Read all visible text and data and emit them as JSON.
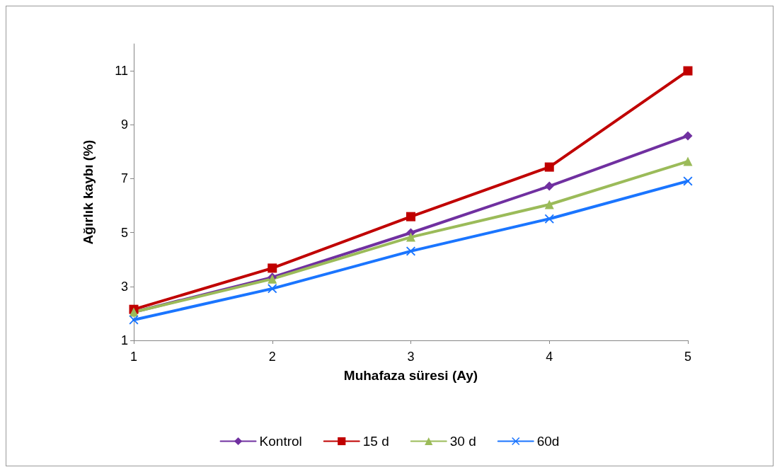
{
  "chart_data": {
    "type": "line",
    "xlabel": "Muhafaza süresi (Ay)",
    "ylabel": "Ağırlık kaybı (%)",
    "x": [
      1,
      2,
      3,
      4,
      5
    ],
    "xlim": [
      1,
      5
    ],
    "xticks": [
      1,
      2,
      3,
      4,
      5
    ],
    "ylim": [
      1,
      12
    ],
    "yticks": [
      1,
      3,
      5,
      7,
      9,
      11
    ],
    "grid": false,
    "legend": "bottom",
    "line_style": "solid",
    "series": [
      {
        "name": "Kontrol",
        "color": "#7030a0",
        "marker": "diamond",
        "values": [
          2.05,
          3.34,
          4.99,
          6.72,
          8.59
        ]
      },
      {
        "name": "15 d",
        "color": "#c00000",
        "marker": "square",
        "values": [
          2.15,
          3.68,
          5.59,
          7.43,
          11.0
        ]
      },
      {
        "name": "30 d",
        "color": "#9bbb59",
        "marker": "triangle",
        "values": [
          2.05,
          3.28,
          4.83,
          6.04,
          7.64
        ]
      },
      {
        "name": "60d",
        "color": "#1a75ff",
        "marker": "cross",
        "values": [
          1.76,
          2.92,
          4.31,
          5.51,
          6.91
        ]
      }
    ]
  }
}
